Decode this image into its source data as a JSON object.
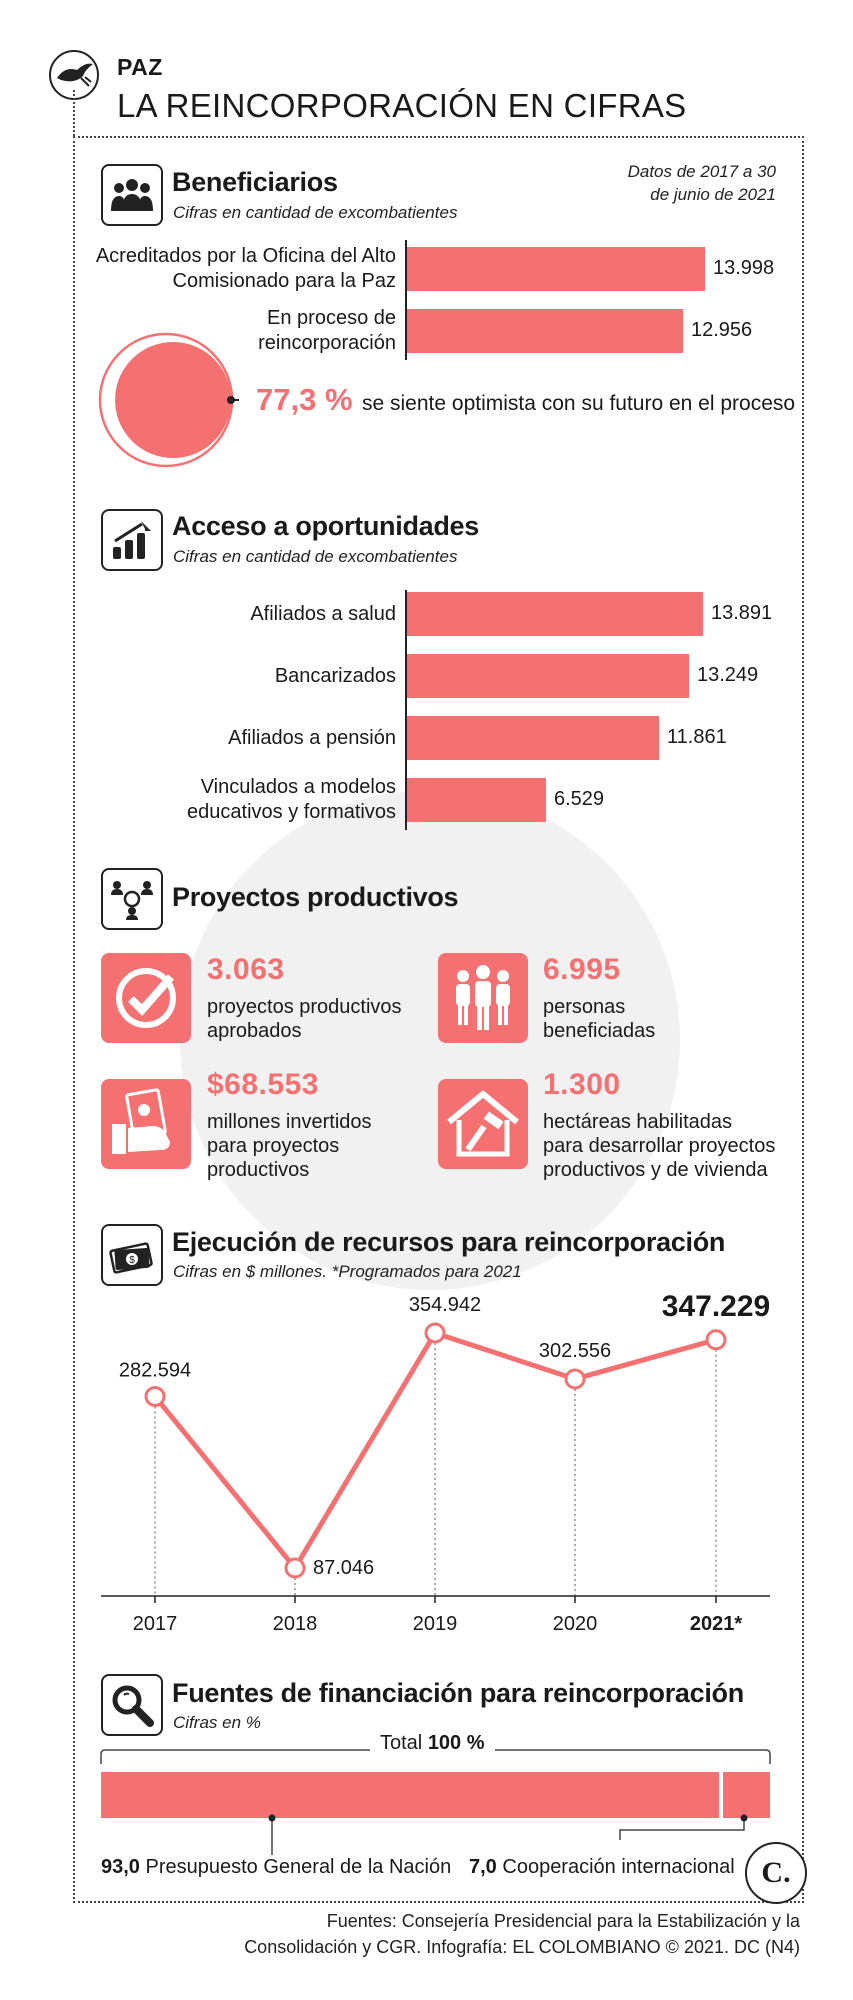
{
  "header": {
    "kicker": "PAZ",
    "title": "LA REINCORPORACIÓN EN CIFRAS"
  },
  "colors": {
    "accent": "#f57071",
    "text": "#1a1a1a",
    "watermark": "#f1f1f1"
  },
  "beneficiarios": {
    "icon": "group-icon",
    "title": "Beneficiarios",
    "subtitle": "Cifras en cantidad de excombatientes",
    "note_line1": "Datos de 2017 a 30",
    "note_line2": "de junio de 2021",
    "bars": [
      {
        "label_line1": "Acreditados por la Oficina del Alto",
        "label_line2": "Comisionado para la Paz",
        "value": 13998,
        "display": "13.998"
      },
      {
        "label_line1": "En proceso de",
        "label_line2": "reincorporación",
        "value": 12956,
        "display": "12.956"
      }
    ],
    "optimism_pct": 77.3,
    "optimism_display": "77,3 %",
    "optimism_text": "se siente optimista con su futuro en el proceso"
  },
  "acceso": {
    "icon": "growth-chart-icon",
    "title": "Acceso a oportunidades",
    "subtitle": "Cifras en cantidad de excombatientes",
    "bars": [
      {
        "label_line1": "",
        "label_line2": "Afiliados a salud",
        "value": 13891,
        "display": "13.891"
      },
      {
        "label_line1": "",
        "label_line2": "Bancarizados",
        "value": 13249,
        "display": "13.249"
      },
      {
        "label_line1": "",
        "label_line2": "Afiliados a pensión",
        "value": 11861,
        "display": "11.861"
      },
      {
        "label_line1": "Vinculados a modelos",
        "label_line2": "educativos y formativos",
        "value": 6529,
        "display": "6.529"
      }
    ]
  },
  "proyectos": {
    "icon": "network-people-icon",
    "title": "Proyectos productivos",
    "items": [
      {
        "icon": "checkmark-icon",
        "number": "3.063",
        "line1": "proyectos productivos",
        "line2": "aprobados",
        "line3": ""
      },
      {
        "icon": "people-icon",
        "number": "6.995",
        "line1": "personas",
        "line2": "beneficiadas",
        "line3": ""
      },
      {
        "icon": "money-hand-icon",
        "number": "$68.553",
        "line1": "millones invertidos",
        "line2": "para proyectos",
        "line3": "productivos"
      },
      {
        "icon": "house-hammer-icon",
        "number": "1.300",
        "line1": "hectáreas habilitadas",
        "line2": "para desarrollar proyectos",
        "line3": "productivos y de vivienda"
      }
    ]
  },
  "ejecucion": {
    "icon": "money-bill-icon",
    "title": "Ejecución de recursos para reincorporación",
    "subtitle": "Cifras en $ millones.  *Programados para 2021"
  },
  "fuentes_fin": {
    "icon": "magnifier-icon",
    "title": "Fuentes de financiación para reincorporación",
    "subtitle": "Cifras en %",
    "total_label": "Total",
    "total_value": "100 %",
    "segments": [
      {
        "value": 93.0,
        "display": "93,0",
        "label": "Presupuesto General de la Nación"
      },
      {
        "value": 7.0,
        "display": "7,0",
        "label": "Cooperación internacional"
      }
    ]
  },
  "brand_logo": {
    "icon": "el-colombiano-logo-icon",
    "text": "C."
  },
  "footer": {
    "line1": "Fuentes: Consejería Presidencial para la Estabilización y la",
    "line2": "Consolidación y CGR. Infografía: EL COLOMBIANO © 2021. DC (N4)"
  },
  "chart_data": [
    {
      "type": "bar",
      "title": "Beneficiarios",
      "categories": [
        "Acreditados por la Oficina del Alto Comisionado para la Paz",
        "En proceso de reincorporación"
      ],
      "values": [
        13998,
        12956
      ],
      "orientation": "horizontal"
    },
    {
      "type": "bar",
      "title": "Acceso a oportunidades",
      "categories": [
        "Afiliados a salud",
        "Bancarizados",
        "Afiliados a pensión",
        "Vinculados a modelos educativos y formativos"
      ],
      "values": [
        13891,
        13249,
        11861,
        6529
      ],
      "orientation": "horizontal"
    },
    {
      "type": "line",
      "title": "Ejecución de recursos para reincorporación",
      "x": [
        "2017",
        "2018",
        "2019",
        "2020",
        "2021*"
      ],
      "values": [
        282594,
        87046,
        354942,
        302556,
        347229
      ],
      "labels": [
        "282.594",
        "87.046",
        "354.942",
        "302.556",
        "347.229"
      ],
      "grid": false
    },
    {
      "type": "bar",
      "title": "Fuentes de financiación para reincorporación",
      "categories": [
        "Presupuesto General de la Nación",
        "Cooperación internacional"
      ],
      "values": [
        93.0,
        7.0
      ],
      "stacked": true
    }
  ]
}
